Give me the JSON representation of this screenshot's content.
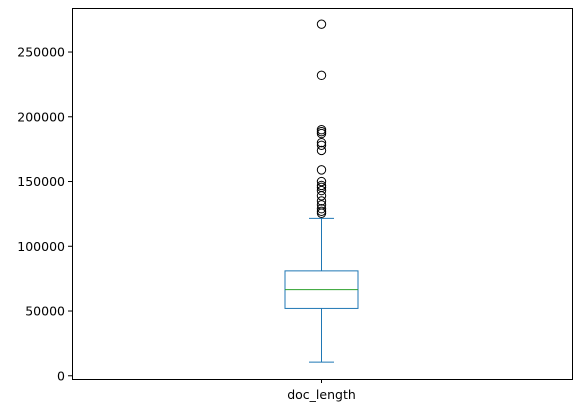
{
  "chart_data": {
    "type": "box",
    "categories": [
      "doc_length"
    ],
    "ylim": [
      -2500,
      284000
    ],
    "yticks": [
      0,
      50000,
      100000,
      150000,
      200000,
      250000
    ],
    "ytick_labels": [
      "0",
      "50000",
      "100000",
      "150000",
      "200000",
      "250000"
    ],
    "grid": false,
    "box": {
      "whisker_low": 10500,
      "q1": 52000,
      "median": 66500,
      "q3": 81000,
      "whisker_high": 121500
    },
    "outliers": [
      271500,
      232000,
      190000,
      188500,
      187000,
      180000,
      178000,
      174000,
      159000,
      150000,
      147000,
      145500,
      143000,
      139000,
      135000,
      132000,
      129000,
      127000,
      125500
    ],
    "colors": {
      "box": "#1f77b4",
      "median": "#2ca02c",
      "outlier_edge": "#000000",
      "axes": "#000000"
    }
  }
}
